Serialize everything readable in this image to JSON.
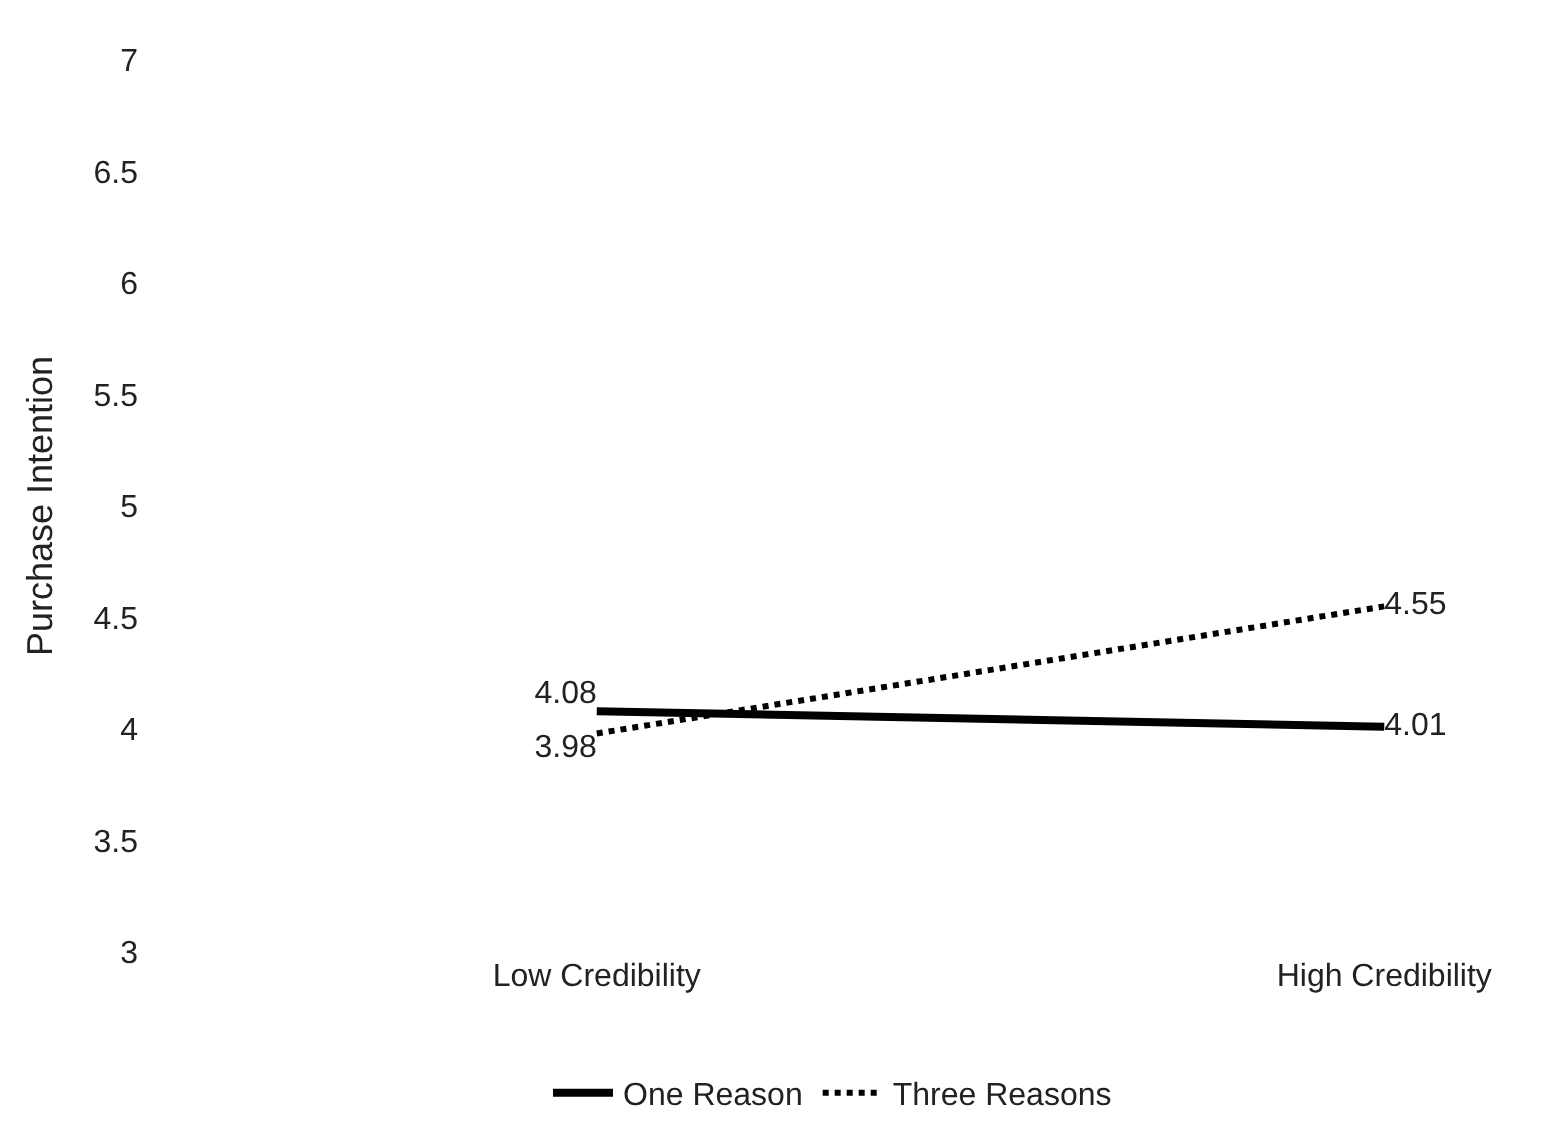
{
  "chart_data": {
    "type": "line",
    "ylabel": "Purchase Intention",
    "categories": [
      "Low Credibility",
      "High Credibility"
    ],
    "series": [
      {
        "name": "One Reason",
        "color": "#000000",
        "values": [
          4.08,
          4.01
        ],
        "line_style": "solid"
      },
      {
        "name": "Three Reasons",
        "color": "#000000",
        "values": [
          3.98,
          4.55
        ],
        "line_style": "dotted"
      }
    ],
    "ylim": [
      3,
      7
    ],
    "yticks": [
      3,
      3.5,
      4,
      4.5,
      5,
      5.5,
      6,
      6.5,
      7
    ],
    "data_labels": true,
    "legend": "bottom",
    "marker": "none"
  }
}
